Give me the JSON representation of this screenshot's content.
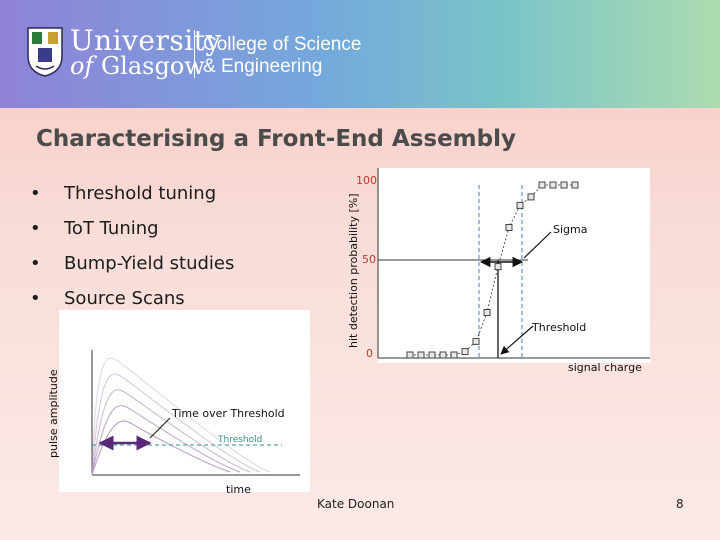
{
  "header": {
    "university_line1": "University",
    "university_line2_of": "of",
    "university_line2_rest": "Glasgow",
    "college_line1": "College of Science",
    "college_line2": "& Engineering",
    "header_gradient": [
      "#8f82d8",
      "#74a9dc",
      "#7ac4c8",
      "#acdcb0"
    ]
  },
  "slide": {
    "title": "Characterising a Front-End Assembly",
    "bullets": [
      "Threshold tuning",
      "ToT Tuning",
      "Bump-Yield studies",
      "Source Scans"
    ],
    "author": "Kate Doonan",
    "page_number": "8"
  },
  "chart_data": [
    {
      "type": "line",
      "title": "",
      "xlabel": "signal charge",
      "ylabel": "hit detection probability [%]",
      "yticks": [
        "100",
        "50",
        "0"
      ],
      "ylim": [
        0,
        100
      ],
      "x": [
        1,
        2,
        3,
        4,
        5,
        6,
        7,
        8,
        9,
        10,
        11,
        12,
        13,
        14,
        15,
        16
      ],
      "values": [
        0,
        0,
        0,
        0,
        0,
        2,
        8,
        25,
        52,
        75,
        88,
        93,
        100,
        100,
        100,
        100
      ],
      "annotations": [
        {
          "text": "Sigma",
          "arrow": "double"
        },
        {
          "text": "Threshold",
          "arrow": "single"
        }
      ],
      "series_color": "#555555"
    },
    {
      "type": "line",
      "title": "",
      "xlabel": "time",
      "ylabel": "pulse amplitude",
      "series_count": 5,
      "threshold_label": "Threshold",
      "annotations": [
        {
          "text": "Time over Threshold",
          "arrow": "double"
        }
      ],
      "threshold_color": "#3a8f8a",
      "arrow_color": "#5a2a7a"
    }
  ]
}
